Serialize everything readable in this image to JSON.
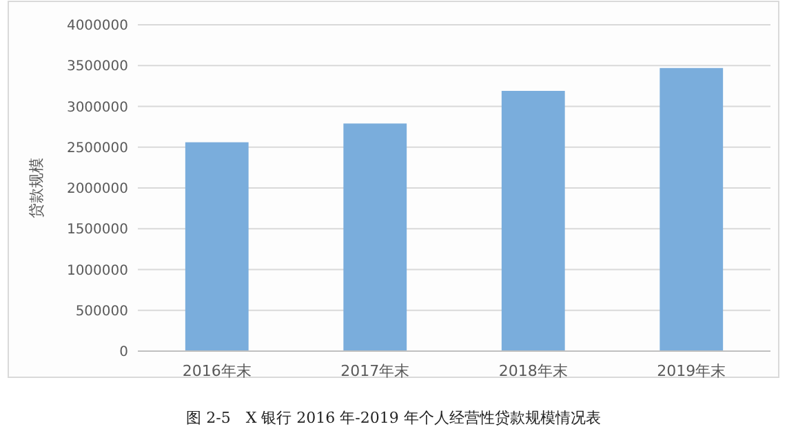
{
  "chart_data": {
    "type": "bar",
    "title": "图 2-5　X 银行 2016 年-2019 年个人经营性贷款规模情况表",
    "ylabel": "贷款规模",
    "categories": [
      "2016年末",
      "2017年末",
      "2018年末",
      "2019年末"
    ],
    "values": [
      2560000,
      2790000,
      3190000,
      3470000
    ],
    "color": "#7aaddc",
    "ylim": [
      0,
      4000000
    ],
    "yticks": [
      0,
      500000,
      1000000,
      1500000,
      2000000,
      2500000,
      3000000,
      3500000,
      4000000
    ],
    "grid": "y"
  }
}
